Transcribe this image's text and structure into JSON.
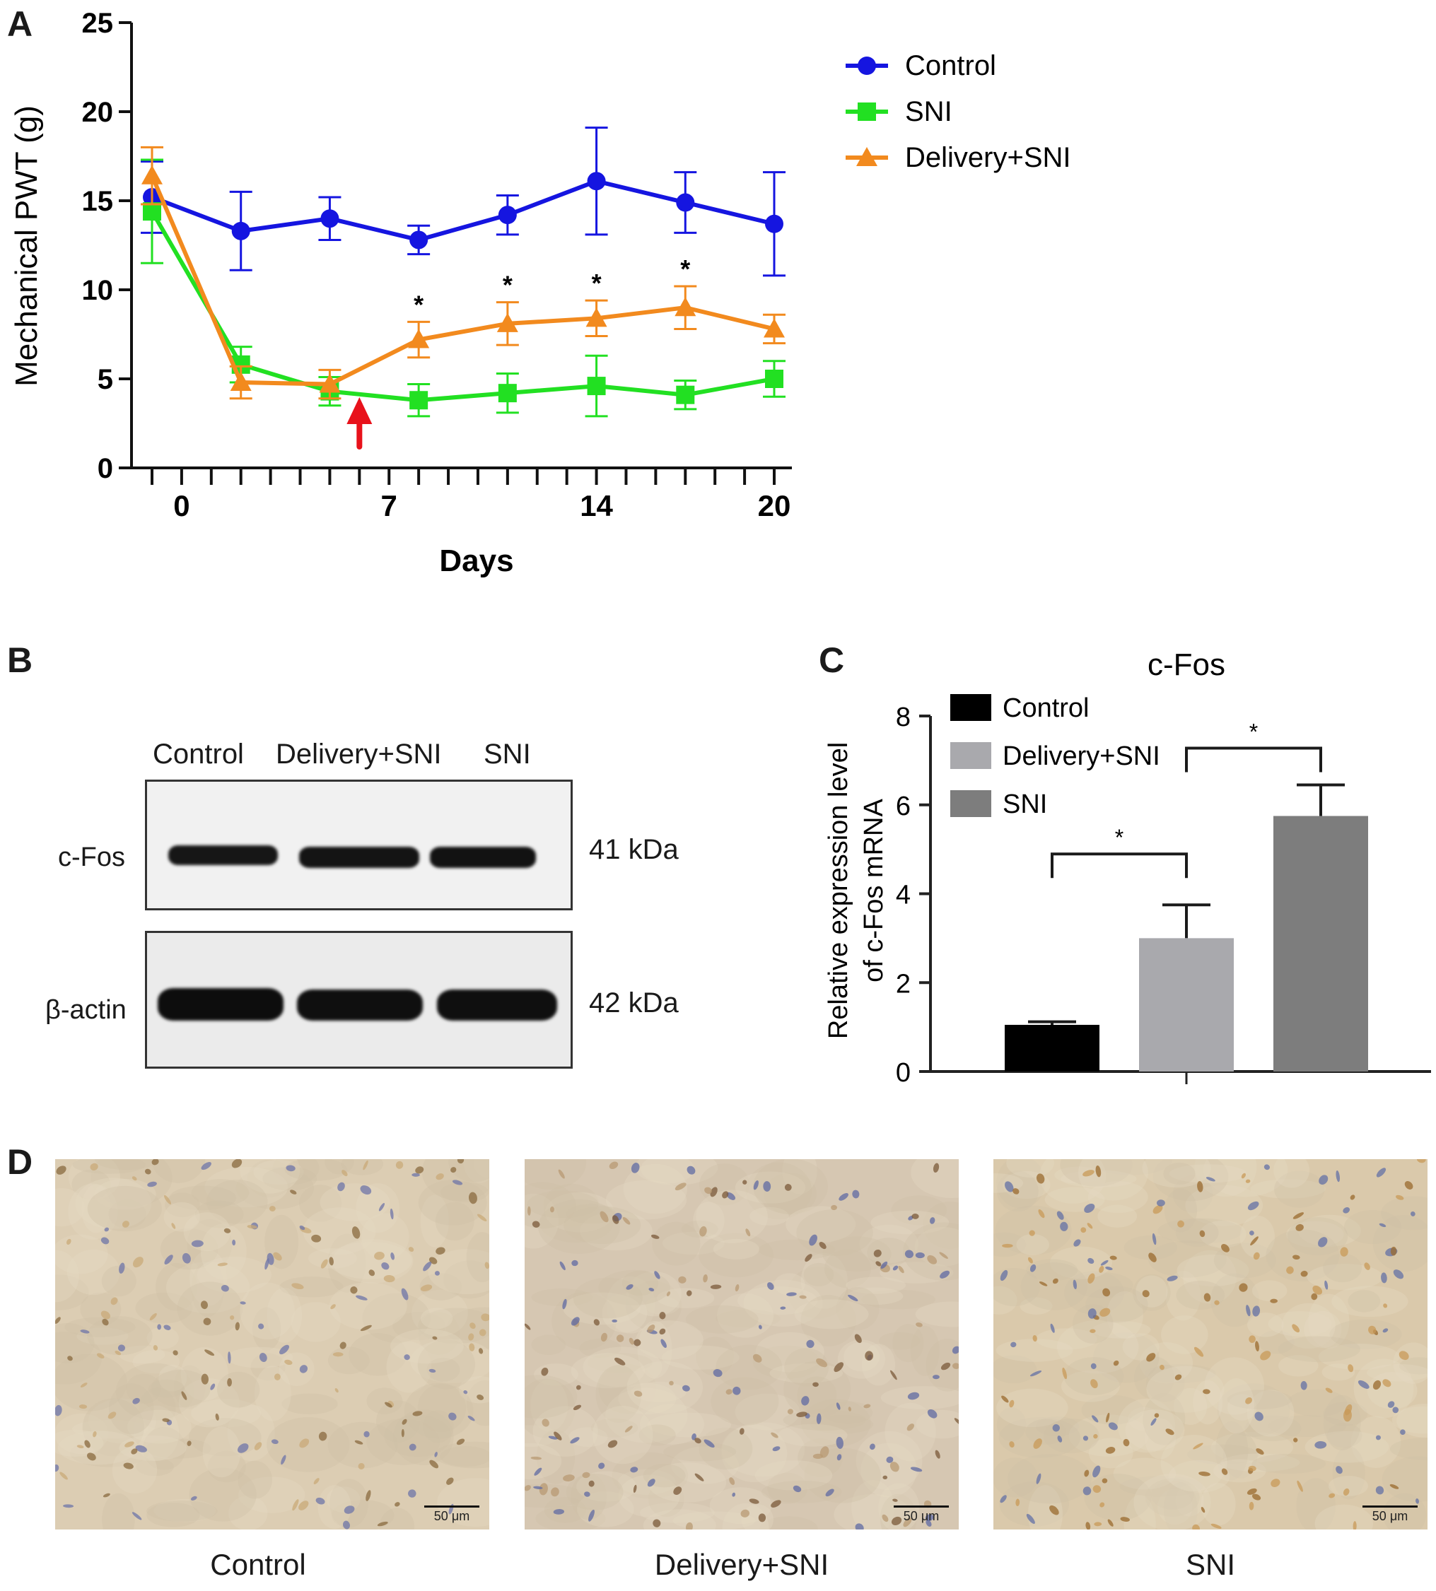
{
  "panels": {
    "A": "A",
    "B": "B",
    "C": "C",
    "D": "D"
  },
  "chart_data": [
    {
      "type": "line",
      "ylabel": "Mechanical PWT (g)",
      "xlabel": "Days",
      "ylim": [
        0,
        25
      ],
      "yticks": [
        "0",
        "5",
        "10",
        "15",
        "20",
        "25"
      ],
      "xticks": [
        "0",
        "7",
        "14",
        "20"
      ],
      "xlim": [
        -1,
        20
      ],
      "annotation": "arrow at day 6 (red)",
      "significance_marker": "*",
      "significance_x": [
        8,
        11,
        14,
        17
      ],
      "legend_position": "top-right",
      "series": [
        {
          "name": "Control",
          "color": "#1515e0",
          "marker": "circle",
          "x": [
            -1,
            2,
            5,
            8,
            11,
            14,
            17,
            20
          ],
          "y": [
            15.2,
            13.3,
            14.0,
            12.8,
            14.2,
            16.1,
            14.9,
            13.7
          ],
          "err": [
            2.0,
            2.2,
            1.2,
            0.8,
            1.1,
            3.0,
            1.7,
            2.9
          ]
        },
        {
          "name": "SNI",
          "color": "#22e022",
          "marker": "square",
          "x": [
            -1,
            2,
            5,
            8,
            11,
            14,
            17,
            20
          ],
          "y": [
            14.4,
            5.8,
            4.3,
            3.8,
            4.2,
            4.6,
            4.1,
            5.0
          ],
          "err": [
            2.9,
            1.0,
            0.8,
            0.9,
            1.1,
            1.7,
            0.8,
            1.0
          ]
        },
        {
          "name": "Delivery+SNI",
          "color": "#f28a1e",
          "marker": "triangle",
          "x": [
            -1,
            2,
            5,
            8,
            11,
            14,
            17,
            20
          ],
          "y": [
            16.4,
            4.8,
            4.7,
            7.2,
            8.1,
            8.4,
            9.0,
            7.8
          ],
          "err": [
            1.6,
            0.9,
            0.8,
            1.0,
            1.2,
            1.0,
            1.2,
            0.8
          ]
        }
      ]
    },
    {
      "type": "bar",
      "title": "c-Fos",
      "ylabel": "Relative expression level of c-Fos mRNA",
      "ylim": [
        0,
        8
      ],
      "yticks": [
        "0",
        "2",
        "4",
        "6",
        "8"
      ],
      "categories": [
        "Control",
        "Delivery+SNI",
        "SNI"
      ],
      "values": [
        1.05,
        3.0,
        5.75
      ],
      "err": [
        0.07,
        0.75,
        0.7
      ],
      "colors": [
        "#000000",
        "#a9a9ad",
        "#7d7d7d"
      ],
      "significance": [
        "*",
        "*"
      ],
      "legend_position": "top-left"
    }
  ],
  "western_blot": {
    "lanes": [
      "Control",
      "Delivery+SNI",
      "SNI"
    ],
    "rows": [
      {
        "label": "c-Fos",
        "size": "41 kDa"
      },
      {
        "label": "β-actin",
        "size": "42 kDa"
      }
    ]
  },
  "micrographs": [
    {
      "caption": "Control",
      "scale": "50 μm"
    },
    {
      "caption": "Delivery+SNI",
      "scale": "50 μm"
    },
    {
      "caption": "SNI",
      "scale": "50 μm"
    }
  ]
}
